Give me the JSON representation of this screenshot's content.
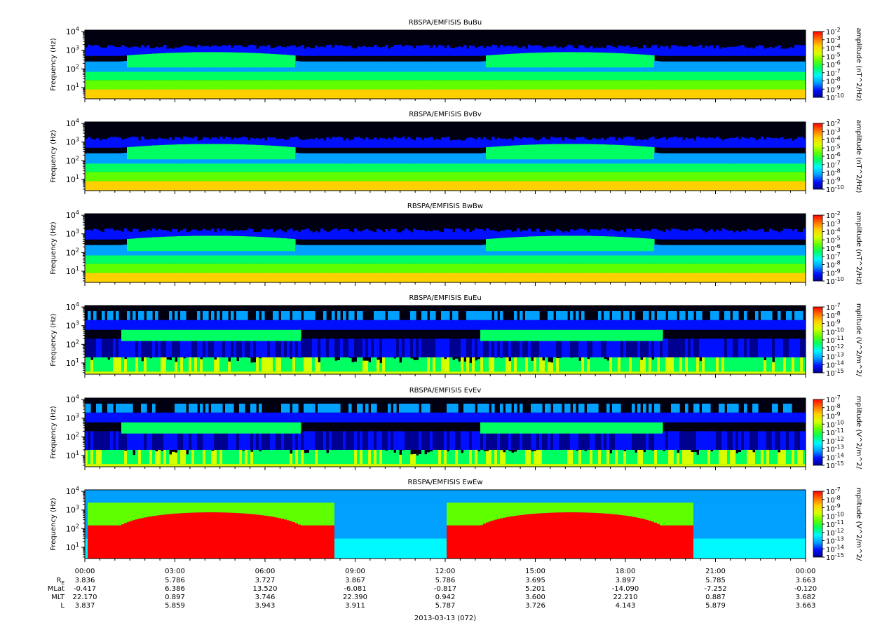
{
  "chart_data": {
    "type": "heatmap",
    "title": "",
    "date_label": "2013-03-13 (072)",
    "x_ticks": [
      "00:00",
      "03:00",
      "06:00",
      "09:00",
      "12:00",
      "15:00",
      "18:00",
      "21:00",
      "00:00"
    ],
    "y_axis": {
      "label": "Frequency (Hz)",
      "scale": "log",
      "tick_labels": [
        {
          "base": "10",
          "exp": "4"
        },
        {
          "base": "10",
          "exp": "3"
        },
        {
          "base": "10",
          "exp": "2"
        },
        {
          "base": "10",
          "exp": "1"
        }
      ],
      "ylim": [
        2.5,
        12000
      ]
    },
    "colormap": [
      "#000090",
      "#0010ff",
      "#00a0ff",
      "#00f8ff",
      "#00ff60",
      "#60ff00",
      "#d8ff00",
      "#ffd000",
      "#ff7000",
      "#ff0000"
    ],
    "panels": [
      {
        "title": "RBSPA/EMFISIS  BuBu",
        "colorbar_label": "amplitude (nT^2/Hz)",
        "colorbar_exponents": [
          "-2",
          "-3",
          "-4",
          "-5",
          "-6",
          "-7",
          "-8",
          "-9",
          "-10"
        ]
      },
      {
        "title": "RBSPA/EMFISIS  BvBv",
        "colorbar_label": "amplitude (nT^2/Hz)",
        "colorbar_exponents": [
          "-2",
          "-3",
          "-4",
          "-5",
          "-6",
          "-7",
          "-8",
          "-9",
          "-10"
        ]
      },
      {
        "title": "RBSPA/EMFISIS  BwBw",
        "colorbar_label": "amplitude (nT^2/Hz)",
        "colorbar_exponents": [
          "-2",
          "-3",
          "-4",
          "-5",
          "-6",
          "-7",
          "-8",
          "-9",
          "-10"
        ]
      },
      {
        "title": "RBSPA/EMFISIS  EuEu",
        "colorbar_label": "mplitude (V^2/m^2/",
        "colorbar_exponents": [
          "-7",
          "-8",
          "-9",
          "-10",
          "-11",
          "-12",
          "-13",
          "-14",
          "-15"
        ]
      },
      {
        "title": "RBSPA/EMFISIS  EvEv",
        "colorbar_label": "mplitude (V^2/m^2/",
        "colorbar_exponents": [
          "-7",
          "-8",
          "-9",
          "-10",
          "-11",
          "-12",
          "-13",
          "-14",
          "-15"
        ]
      },
      {
        "title": "RBSPA/EMFISIS  EwEw",
        "colorbar_label": "mplitude (V^2/m^2/",
        "colorbar_exponents": [
          "-7",
          "-8",
          "-9",
          "-10",
          "-11",
          "-12",
          "-13",
          "-14",
          "-15"
        ]
      }
    ],
    "ephemeris": {
      "rows": [
        {
          "label": "R",
          "label_sub": "E",
          "values": [
            "3.836",
            "5.786",
            "3.727",
            "3.867",
            "5.786",
            "3.695",
            "3.897",
            "5.785",
            "3.663"
          ]
        },
        {
          "label": "MLat",
          "label_sub": "",
          "values": [
            "-0.417",
            "6.386",
            "13.520",
            "-6.081",
            "-0.817",
            "5.201",
            "-14.090",
            "-7.252",
            "-0.120"
          ]
        },
        {
          "label": "MLT",
          "label_sub": "",
          "values": [
            "22.170",
            "0.897",
            "3.746",
            "22.390",
            "0.942",
            "3.600",
            "22.210",
            "0.887",
            "3.682"
          ]
        },
        {
          "label": "L",
          "label_sub": "",
          "values": [
            "3.837",
            "5.859",
            "3.943",
            "3.911",
            "5.787",
            "3.726",
            "4.143",
            "5.879",
            "3.663"
          ]
        }
      ]
    }
  }
}
